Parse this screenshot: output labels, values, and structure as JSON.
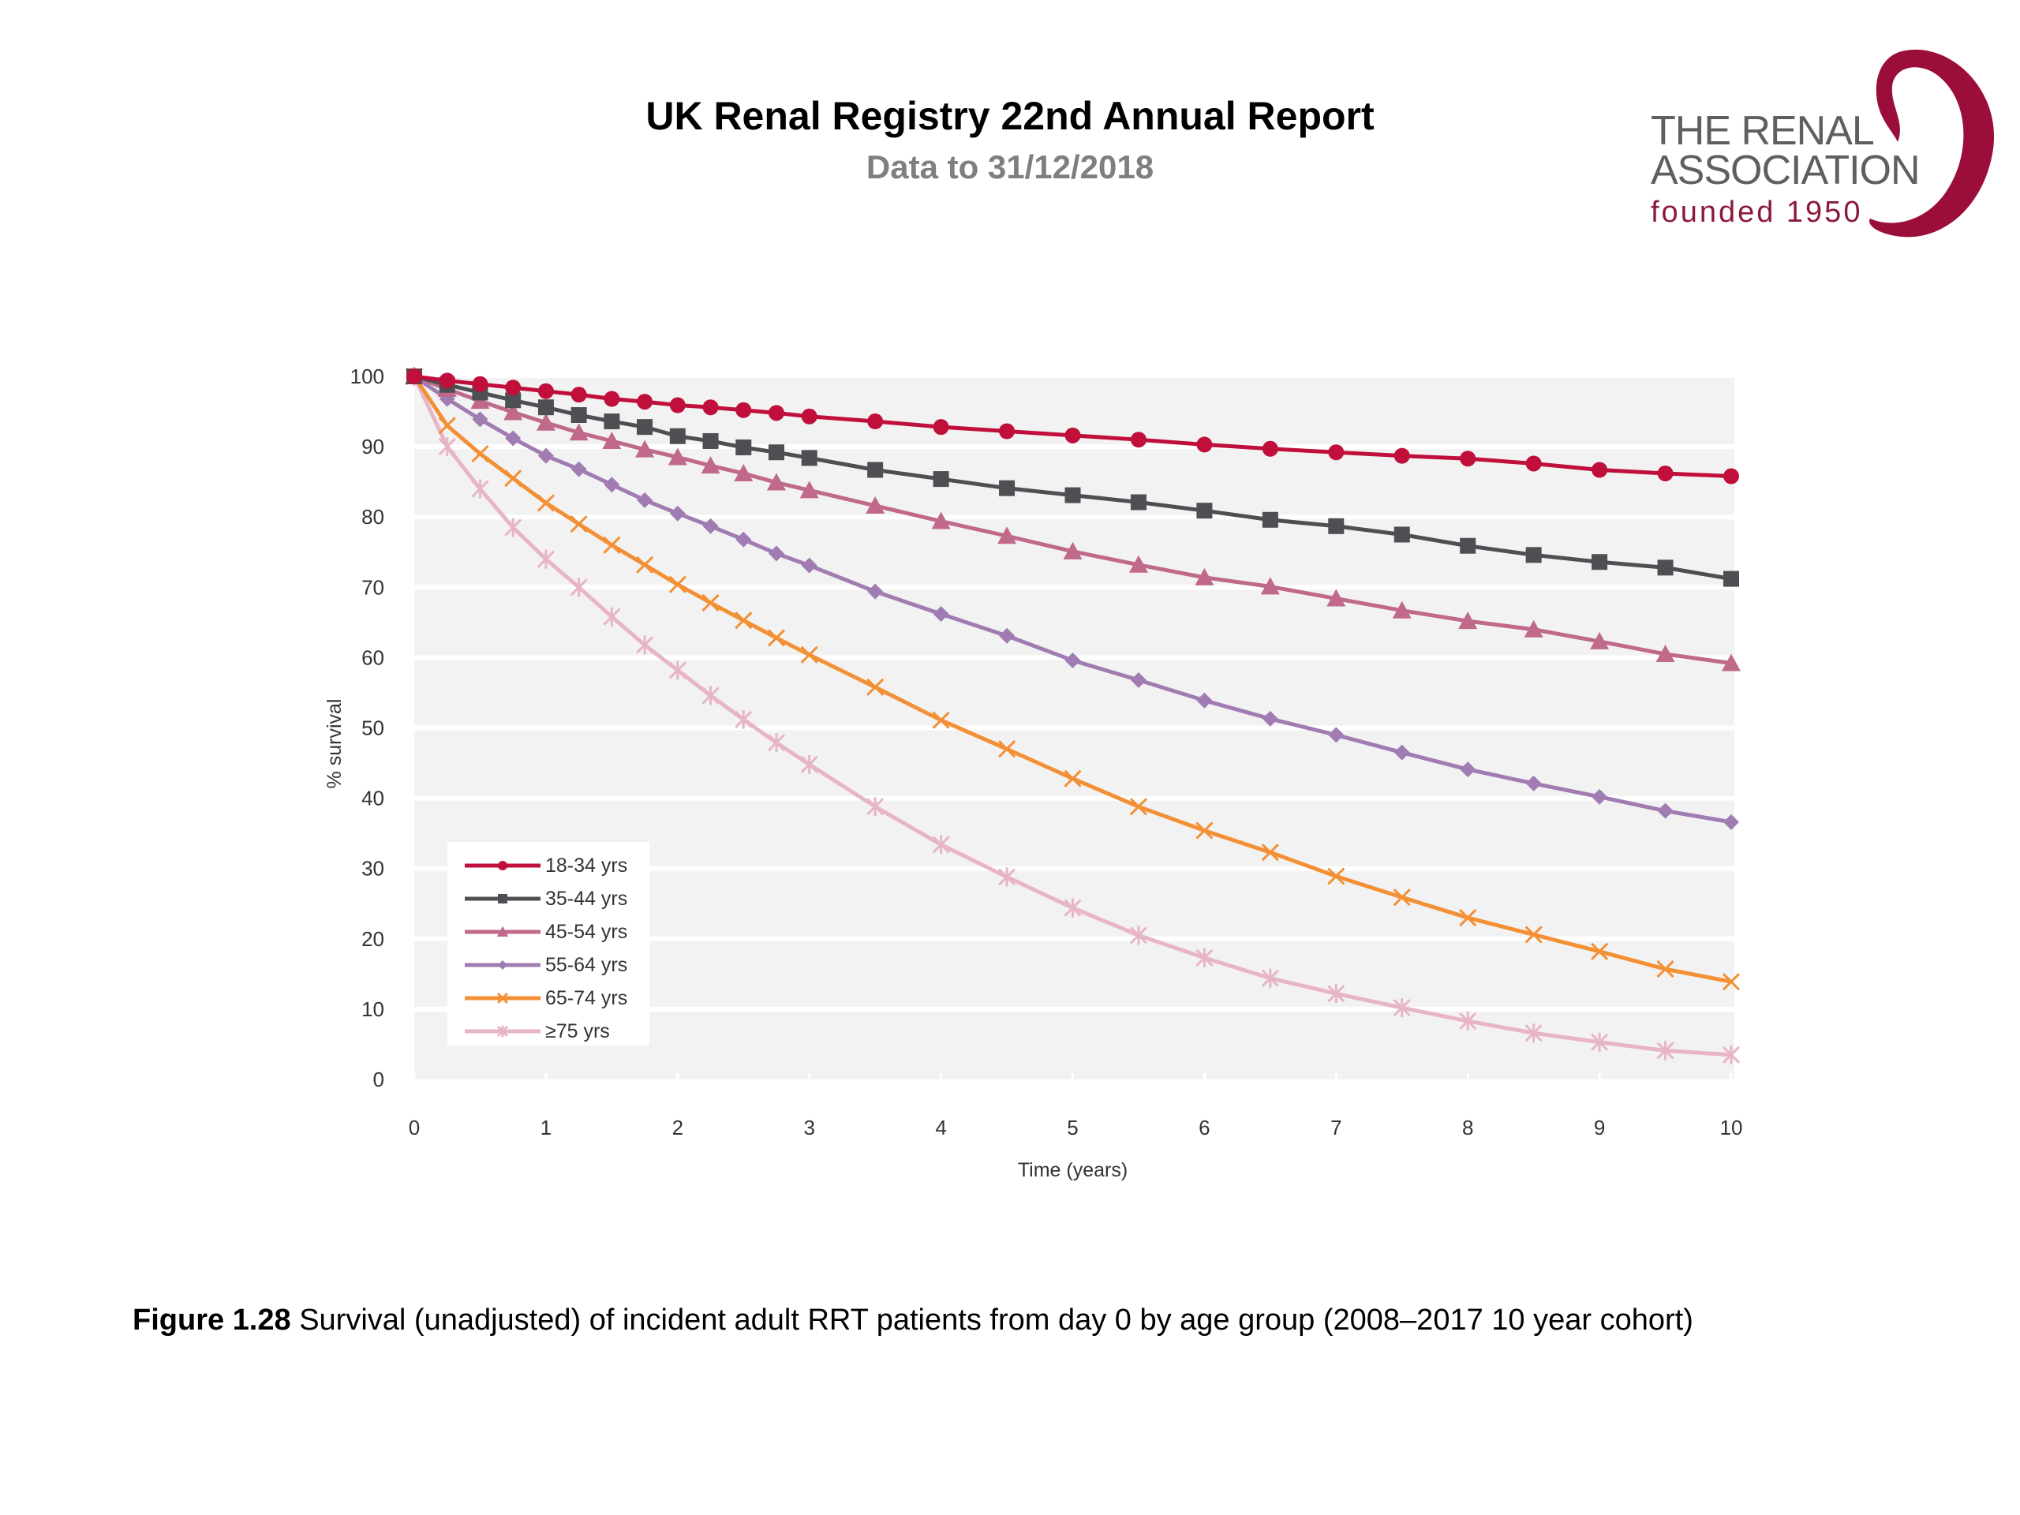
{
  "header": {
    "title": "UK Renal Registry 22nd Annual Report",
    "subtitle": "Data to 31/12/2018"
  },
  "logo": {
    "line1": "THE RENAL",
    "line2": "ASSOCIATION",
    "line3": "founded 1950",
    "icon": "kidney-swirl-icon",
    "color": "#9b0e3a"
  },
  "caption": {
    "label": "Figure 1.28",
    "text": " Survival (unadjusted) of incident adult RRT patients from day 0 by age group (2008–2017 10 year cohort)"
  },
  "chart_data": {
    "type": "line",
    "title": "",
    "xlabel": "Time (years)",
    "ylabel": "% survival",
    "xlim": [
      0,
      10
    ],
    "ylim": [
      0,
      100
    ],
    "xticks": [
      "0",
      "1",
      "2",
      "3",
      "4",
      "5",
      "6",
      "7",
      "8",
      "9",
      "10"
    ],
    "yticks": [
      "0",
      "10",
      "20",
      "30",
      "40",
      "50",
      "60",
      "70",
      "80",
      "90",
      "100"
    ],
    "grid": "horizontal",
    "background": "#f2f2f2",
    "legend_position": "bottom-left",
    "x": [
      0,
      0.25,
      0.5,
      0.75,
      1,
      1.25,
      1.5,
      1.75,
      2,
      2.25,
      2.5,
      2.75,
      3,
      3.5,
      4,
      4.5,
      5,
      5.5,
      6,
      6.5,
      7,
      7.5,
      8,
      8.5,
      9,
      9.5,
      10
    ],
    "series": [
      {
        "name": "18-34 yrs",
        "color": "#c00f3a",
        "marker": "circle",
        "values": [
          100,
          99.4,
          98.9,
          98.4,
          97.9,
          97.4,
          96.8,
          96.4,
          95.9,
          95.6,
          95.2,
          94.8,
          94.3,
          93.6,
          92.8,
          92.2,
          91.6,
          91.0,
          90.3,
          89.7,
          89.2,
          88.7,
          88.3,
          87.6,
          86.7,
          86.2,
          85.8
        ]
      },
      {
        "name": "35-44 yrs",
        "color": "#4d4f53",
        "marker": "square",
        "values": [
          100,
          98.8,
          97.7,
          96.6,
          95.6,
          94.5,
          93.6,
          92.8,
          91.5,
          90.8,
          89.9,
          89.2,
          88.4,
          86.7,
          85.4,
          84.1,
          83.1,
          82.1,
          80.9,
          79.6,
          78.7,
          77.5,
          75.9,
          74.6,
          73.6,
          72.8,
          71.2
        ]
      },
      {
        "name": "45-54 yrs",
        "color": "#c0698a",
        "marker": "triangle",
        "values": [
          100,
          98.2,
          96.5,
          94.9,
          93.4,
          92.0,
          90.8,
          89.6,
          88.5,
          87.3,
          86.2,
          84.9,
          83.8,
          81.6,
          79.4,
          77.3,
          75.1,
          73.2,
          71.4,
          70.1,
          68.4,
          66.7,
          65.2,
          64.0,
          62.3,
          60.5,
          59.2
        ]
      },
      {
        "name": "55-64 yrs",
        "color": "#a07cb2",
        "marker": "diamond",
        "values": [
          100,
          96.8,
          93.9,
          91.2,
          88.7,
          86.8,
          84.6,
          82.4,
          80.5,
          78.7,
          76.8,
          74.8,
          73.1,
          69.4,
          66.2,
          63.1,
          59.6,
          56.8,
          53.9,
          51.3,
          49.0,
          46.5,
          44.1,
          42.1,
          40.2,
          38.2,
          36.6
        ]
      },
      {
        "name": "65-74 yrs",
        "color": "#f39035",
        "marker": "x",
        "values": [
          100,
          93.0,
          89.0,
          85.5,
          82.0,
          79.0,
          76.0,
          73.2,
          70.4,
          67.8,
          65.3,
          62.8,
          60.4,
          55.8,
          51.1,
          47.0,
          42.8,
          38.8,
          35.4,
          32.3,
          28.9,
          25.9,
          23.0,
          20.6,
          18.2,
          15.7,
          13.9
        ]
      },
      {
        "name": "≥75 yrs",
        "color": "#e8b4c8",
        "marker": "star",
        "values": [
          100,
          90.0,
          84.0,
          78.5,
          74.0,
          70.0,
          65.8,
          61.8,
          58.2,
          54.6,
          51.2,
          47.9,
          44.8,
          38.8,
          33.4,
          28.8,
          24.4,
          20.5,
          17.3,
          14.4,
          12.2,
          10.2,
          8.3,
          6.6,
          5.3,
          4.1,
          3.5
        ]
      }
    ]
  }
}
